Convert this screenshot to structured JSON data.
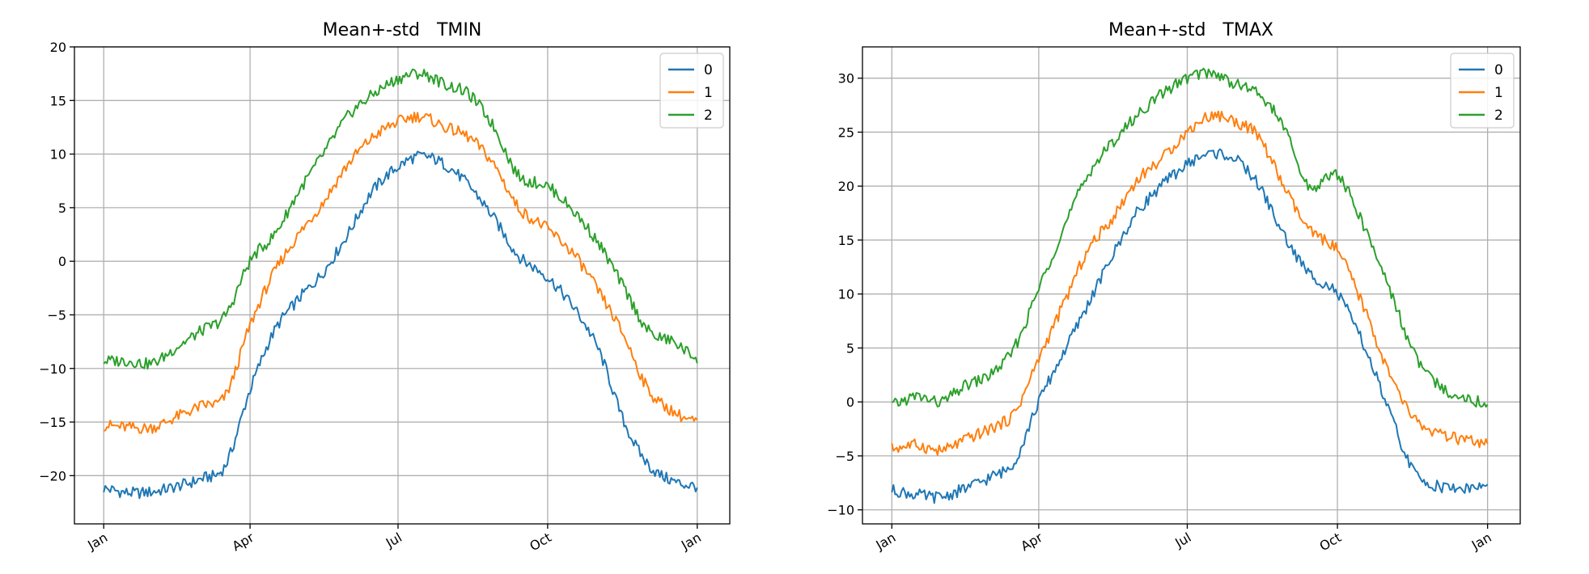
{
  "colors": {
    "series_0": "#1f77b4",
    "series_1": "#ff7f0e",
    "series_2": "#2ca02c"
  },
  "chart_data": [
    {
      "type": "line",
      "title": "Mean+-std   TMIN",
      "xlabel": "",
      "ylabel": "",
      "x_ticks": [
        "Jan",
        "Apr",
        "Jul",
        "Oct",
        "Jan"
      ],
      "x_tick_days": [
        0,
        90,
        181,
        273,
        365
      ],
      "y_ticks": [
        "20",
        "15",
        "10",
        "5",
        "0",
        "−5",
        "−10",
        "−15",
        "−20"
      ],
      "y_tick_values": [
        20,
        15,
        10,
        5,
        0,
        -5,
        -10,
        -15,
        -20
      ],
      "ylim": [
        -24.5,
        20
      ],
      "xlim": [
        -18,
        385
      ],
      "grid": true,
      "legend_position": "top-right",
      "legend": [
        "0",
        "1",
        "2"
      ],
      "x": [
        0,
        15,
        30,
        45,
        60,
        75,
        90,
        105,
        120,
        135,
        150,
        165,
        181,
        195,
        210,
        225,
        240,
        255,
        273,
        290,
        305,
        320,
        335,
        350,
        365
      ],
      "series": [
        {
          "name": "0",
          "values": [
            -21.2,
            -21.6,
            -21.5,
            -21.0,
            -20.3,
            -19.0,
            -12.0,
            -6.5,
            -3.5,
            -1.0,
            2.5,
            6.5,
            8.8,
            9.8,
            9.0,
            7.0,
            4.0,
            0.5,
            -1.5,
            -4.5,
            -8.5,
            -15.0,
            -19.0,
            -20.5,
            -21.0
          ]
        },
        {
          "name": "1",
          "values": [
            -15.3,
            -15.5,
            -15.5,
            -14.5,
            -13.5,
            -12.5,
            -6.0,
            -1.0,
            2.5,
            5.5,
            9.0,
            11.5,
            13.0,
            13.5,
            12.5,
            11.5,
            9.0,
            5.0,
            3.0,
            0.5,
            -3.0,
            -7.0,
            -12.0,
            -14.0,
            -15.0
          ]
        },
        {
          "name": "2",
          "values": [
            -9.3,
            -9.3,
            -9.5,
            -8.0,
            -6.5,
            -5.0,
            0.0,
            2.5,
            6.5,
            10.0,
            13.5,
            15.5,
            17.0,
            17.5,
            16.5,
            15.5,
            12.5,
            8.0,
            7.0,
            4.5,
            1.5,
            -2.5,
            -6.5,
            -7.5,
            -9.0
          ]
        }
      ]
    },
    {
      "type": "line",
      "title": "Mean+-std   TMAX",
      "xlabel": "",
      "ylabel": "",
      "x_ticks": [
        "Jan",
        "Apr",
        "Jul",
        "Oct",
        "Jan"
      ],
      "x_tick_days": [
        0,
        90,
        181,
        273,
        365
      ],
      "y_ticks": [
        "30",
        "25",
        "20",
        "15",
        "10",
        "5",
        "0",
        "−5",
        "−10"
      ],
      "y_tick_values": [
        30,
        25,
        20,
        15,
        10,
        5,
        0,
        -5,
        -10
      ],
      "ylim": [
        -11.3,
        32.9
      ],
      "xlim": [
        -18,
        385
      ],
      "grid": true,
      "legend_position": "top-right",
      "legend": [
        "0",
        "1",
        "2"
      ],
      "x": [
        0,
        15,
        30,
        45,
        60,
        75,
        90,
        105,
        120,
        135,
        150,
        165,
        181,
        195,
        210,
        225,
        240,
        255,
        273,
        290,
        305,
        320,
        335,
        350,
        365
      ],
      "series": [
        {
          "name": "0",
          "values": [
            -8.2,
            -8.6,
            -8.8,
            -8.0,
            -7.0,
            -5.5,
            0.0,
            4.5,
            9.0,
            13.5,
            17.5,
            20.0,
            22.0,
            23.0,
            22.5,
            20.0,
            15.5,
            12.0,
            10.0,
            5.0,
            -1.0,
            -6.5,
            -7.8,
            -8.0,
            -7.8
          ]
        },
        {
          "name": "1",
          "values": [
            -4.3,
            -4.0,
            -4.5,
            -3.5,
            -2.5,
            -1.0,
            4.0,
            9.0,
            14.0,
            17.0,
            20.5,
            22.5,
            25.0,
            26.5,
            26.0,
            24.5,
            20.0,
            16.0,
            14.0,
            8.5,
            2.5,
            -1.5,
            -3.0,
            -3.5,
            -4.0
          ]
        },
        {
          "name": "2",
          "values": [
            -0.3,
            0.5,
            0.0,
            1.5,
            2.5,
            5.0,
            10.5,
            16.0,
            21.0,
            24.0,
            26.5,
            28.5,
            30.0,
            30.5,
            29.5,
            28.5,
            25.5,
            20.0,
            21.0,
            16.0,
            10.5,
            4.5,
            1.5,
            0.5,
            -0.2
          ]
        }
      ]
    }
  ]
}
